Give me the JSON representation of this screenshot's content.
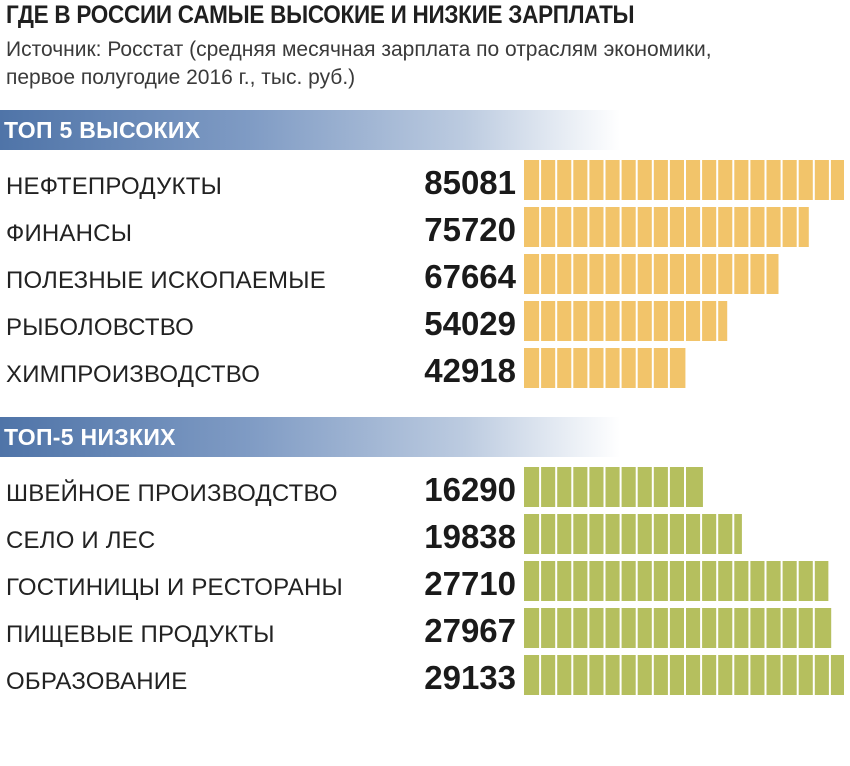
{
  "title": "ГДЕ В РОССИИ САМЫЕ ВЫСОКИЕ И НИЗКИЕ ЗАРПЛАТЫ",
  "subtitle_lines": [
    "Источник: Росстат (средняя месячная зарплата по отраслям экономики,",
    "первое полугодие 2016 г., тыс. руб.)"
  ],
  "colors": {
    "high_bar": "#f2c46a",
    "low_bar": "#b5bf5e",
    "band": "#4f74a8"
  },
  "chart_data": [
    {
      "type": "bar",
      "orientation": "horizontal",
      "title": "ТОП 5 ВЫСОКИХ",
      "categories": [
        "НЕФТЕПРОДУКТЫ",
        "ФИНАНСЫ",
        "ПОЛЕЗНЫЕ ИСКОПАЕМЫЕ",
        "РЫБОЛОВСТВО",
        "ХИМПРОИЗВОДСТВО"
      ],
      "values": [
        85081,
        75720,
        67664,
        54029,
        42918
      ],
      "data_labels": [
        "85081",
        "75720",
        "67664",
        "54029",
        "42918"
      ],
      "xlim": [
        0,
        85081
      ],
      "grid": false
    },
    {
      "type": "bar",
      "orientation": "horizontal",
      "title": "ТОП-5 НИЗКИХ",
      "categories": [
        "ШВЕЙНОЕ ПРОИЗВОДСТВО",
        "СЕЛО И ЛЕС",
        "ГОСТИНИЦЫ И РЕСТОРАНЫ",
        "ПИЩЕВЫЕ ПРОДУКТЫ",
        "ОБРАЗОВАНИЕ"
      ],
      "values": [
        16290,
        19838,
        27710,
        27967,
        29133
      ],
      "data_labels": [
        "16290",
        "19838",
        "27710",
        "27967",
        "29133"
      ],
      "xlim": [
        0,
        29133
      ],
      "grid": false
    }
  ]
}
